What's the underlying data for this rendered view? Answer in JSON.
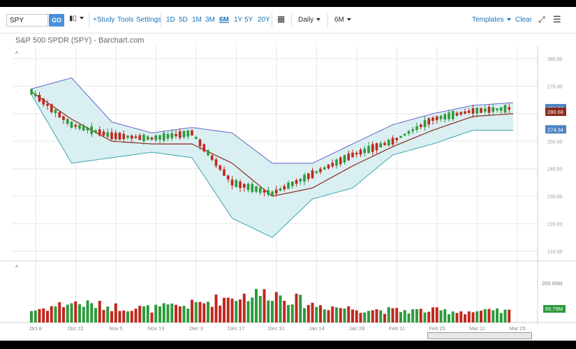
{
  "toolbar": {
    "symbol": "SPY",
    "go_label": "GO",
    "study_label": "+Study",
    "tools_label": "Tools",
    "settings_label": "Settings",
    "ranges": [
      "1D",
      "5D",
      "1M",
      "3M",
      "6M",
      "1Y",
      "5Y",
      "20Y"
    ],
    "active_range": "6M",
    "interval_label": "Daily",
    "chart_size_label": "6M",
    "templates_label": "Templates",
    "clear_label": "Clear"
  },
  "chart": {
    "title": "S&P 500 SPDR (SPY) - Barchart.com",
    "collapse_label": "^",
    "y_ticks": [
      "280.00",
      "270.00",
      "260.00",
      "250.00",
      "240.00",
      "230.00",
      "220.00",
      "210.00"
    ],
    "price_badges": [
      {
        "label": "281.92",
        "color": "#4d84c4"
      },
      {
        "label": "280.68",
        "color": "#8b2a1d"
      },
      {
        "label": "274.34",
        "color": "#4d84c4"
      }
    ],
    "volume_label": "200.00M",
    "volume_badge": "65.75M",
    "x_labels": [
      "Oct 8",
      "Oct 22",
      "Nov 5",
      "Nov 19",
      "Dec 3",
      "Dec 17",
      "Dec 31",
      "Jan 14",
      "Jan 28",
      "Feb 11",
      "Feb 25",
      "Mar 11",
      "Mar 25"
    ],
    "colors": {
      "up": "#2e9a3d",
      "down": "#c0281e",
      "band_fill": "#d9eff1",
      "band_upper": "#6466c8",
      "band_lower": "#3aa8b0",
      "ma": "#8b2a1d"
    }
  },
  "chart_data": {
    "type": "candlestick",
    "title": "S&P 500 SPDR (SPY) - Barchart.com",
    "x": [
      "Oct 8",
      "Oct 22",
      "Nov 5",
      "Nov 19",
      "Dec 3",
      "Dec 17",
      "Dec 31",
      "Jan 14",
      "Jan 28",
      "Feb 11",
      "Feb 25",
      "Mar 11",
      "Mar 25"
    ],
    "series": [
      {
        "name": "close",
        "values": [
          288,
          276,
          272,
          271,
          273,
          255,
          251,
          258,
          265,
          270,
          278,
          281,
          282
        ]
      },
      {
        "name": "upper band",
        "values": [
          289,
          293,
          277,
          273,
          275,
          273,
          262,
          262,
          269,
          276,
          280,
          283,
          284
        ]
      },
      {
        "name": "lower band",
        "values": [
          287,
          262,
          264,
          266,
          264,
          242,
          235,
          249,
          253,
          265,
          269,
          274,
          274
        ]
      },
      {
        "name": "moving average",
        "values": [
          288,
          278,
          270,
          269,
          269,
          262,
          250,
          253,
          261,
          268,
          274,
          279,
          280
        ]
      }
    ],
    "volume_values": [
      60,
      100,
      80,
      70,
      90,
      130,
      150,
      90,
      70,
      60,
      60,
      55,
      55
    ],
    "ylim": [
      230,
      300
    ],
    "volume_ylim": [
      0,
      240
    ]
  }
}
